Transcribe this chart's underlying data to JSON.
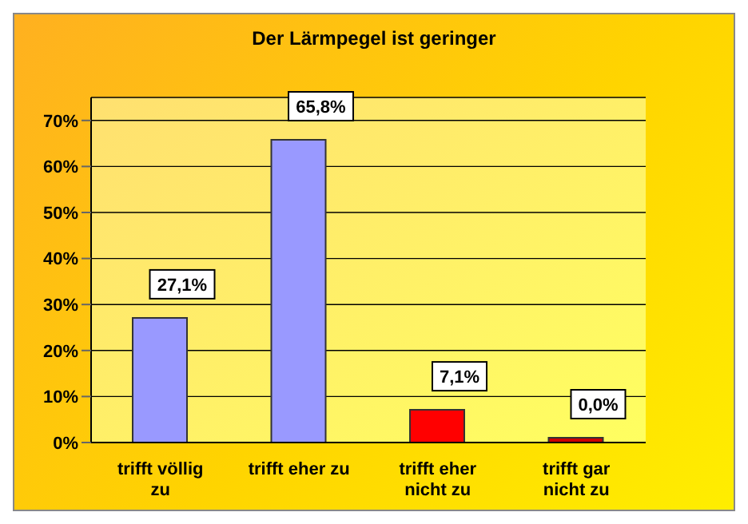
{
  "chart_data": {
    "type": "bar",
    "title": "Der Lärmpegel ist geringer",
    "categories": [
      "trifft völlig zu",
      "trifft eher zu",
      "trifft eher nicht zu",
      "trifft gar nicht zu"
    ],
    "values": [
      27.1,
      65.8,
      7.1,
      0.0
    ],
    "value_labels": [
      "27,1%",
      "65,8%",
      "7,1%",
      "0,0%"
    ],
    "colors": [
      "#9999ff",
      "#9999ff",
      "#ff0000",
      "#cc0000"
    ],
    "ylim": [
      0,
      75
    ],
    "yticks": [
      {
        "value": 0,
        "label": "0%"
      },
      {
        "value": 10,
        "label": "10%"
      },
      {
        "value": 20,
        "label": "20%"
      },
      {
        "value": 30,
        "label": "30%"
      },
      {
        "value": 40,
        "label": "40%"
      },
      {
        "value": 50,
        "label": "50%"
      },
      {
        "value": 60,
        "label": "60%"
      },
      {
        "value": 70,
        "label": "70%"
      }
    ],
    "grid": "y"
  }
}
